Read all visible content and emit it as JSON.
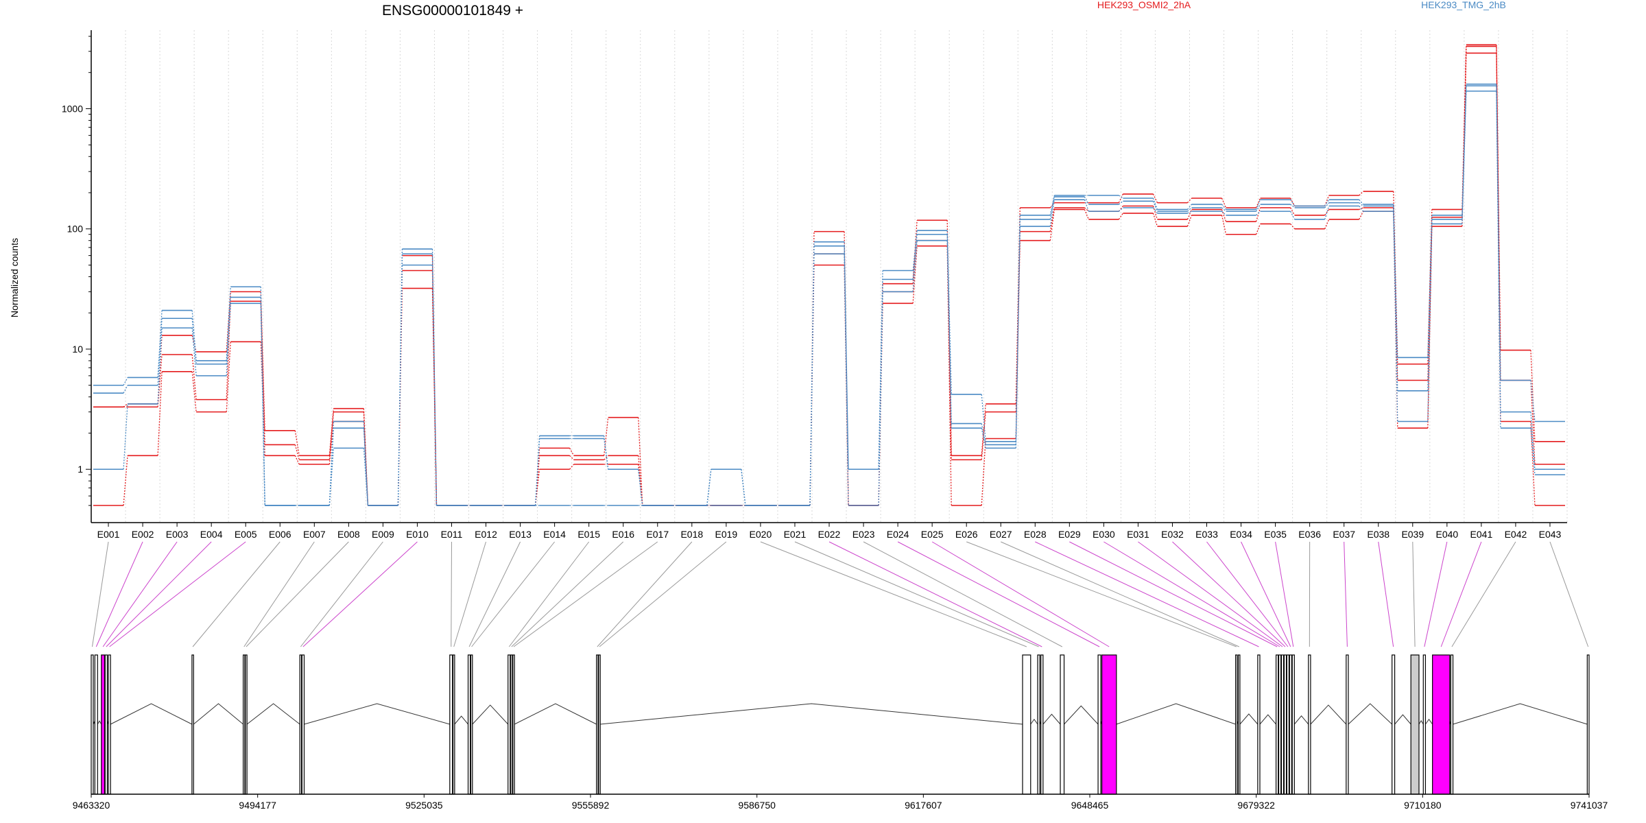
{
  "chart_data": {
    "type": "line",
    "title": "ENSG00000101849 +",
    "ylabel": "Normalized counts",
    "y_scale": "log",
    "ylim": [
      0.5,
      4500
    ],
    "y_ticks": [
      1,
      10,
      100,
      1000
    ],
    "y_tick_labels": [
      "1",
      "10",
      "100",
      "1000"
    ],
    "grid": "vertical dotted lines per exon",
    "legend": [
      {
        "name": "HEK293_OSMI2_2hA",
        "color": "#e41a1c"
      },
      {
        "name": "HEK293_TMG_2hB",
        "color": "#4a8ac4"
      }
    ],
    "categories": [
      "E001",
      "E002",
      "E003",
      "E004",
      "E005",
      "E006",
      "E007",
      "E008",
      "E009",
      "E010",
      "E011",
      "E012",
      "E013",
      "E014",
      "E015",
      "E016",
      "E017",
      "E018",
      "E019",
      "E020",
      "E021",
      "E022",
      "E023",
      "E024",
      "E025",
      "E026",
      "E027",
      "E028",
      "E029",
      "E030",
      "E031",
      "E032",
      "E033",
      "E034",
      "E035",
      "E036",
      "E037",
      "E038",
      "E039",
      "E040",
      "E041",
      "E042",
      "E043"
    ],
    "series": [
      {
        "group": "HEK293_OSMI2_2hA",
        "color": "#e41a1c",
        "values": [
          0.5,
          1.3,
          6.5,
          3.0,
          11.5,
          1.3,
          1.1,
          2.5,
          0.5,
          32,
          0.5,
          0.5,
          0.5,
          1.0,
          1.1,
          1.1,
          0.5,
          0.5,
          0.5,
          0.5,
          0.5,
          50,
          0.5,
          24,
          72,
          0.5,
          1.8,
          80,
          145,
          120,
          135,
          105,
          130,
          90,
          110,
          100,
          120,
          140,
          2.2,
          105,
          2900,
          2.5,
          0.5
        ]
      },
      {
        "group": "HEK293_OSMI2_2hA",
        "color": "#e41a1c",
        "values": [
          3.3,
          3.3,
          9.0,
          3.8,
          25,
          1.6,
          1.2,
          3.0,
          0.5,
          45,
          0.5,
          0.5,
          0.5,
          1.3,
          1.2,
          1.3,
          0.5,
          0.5,
          0.5,
          0.5,
          0.5,
          62,
          0.5,
          30,
          80,
          1.2,
          3.0,
          95,
          150,
          140,
          155,
          120,
          145,
          115,
          150,
          130,
          145,
          150,
          5.5,
          125,
          3300,
          5.5,
          1.1
        ]
      },
      {
        "group": "HEK293_OSMI2_2hA",
        "color": "#e41a1c",
        "values": [
          3.3,
          3.5,
          13,
          9.5,
          30,
          2.1,
          1.3,
          3.2,
          0.5,
          60,
          0.5,
          0.5,
          0.5,
          1.5,
          1.3,
          2.7,
          0.5,
          0.5,
          0.5,
          0.5,
          0.5,
          95,
          0.5,
          35,
          118,
          1.3,
          3.5,
          150,
          165,
          165,
          195,
          165,
          180,
          150,
          180,
          155,
          190,
          205,
          7.5,
          145,
          3400,
          9.8,
          1.7
        ]
      },
      {
        "group": "HEK293_TMG_2hB",
        "color": "#4a8ac4",
        "values": [
          1.0,
          3.5,
          15,
          6.0,
          24,
          0.5,
          0.5,
          1.5,
          0.5,
          50,
          0.5,
          0.5,
          0.5,
          0.5,
          0.5,
          0.5,
          0.5,
          0.5,
          0.5,
          0.5,
          0.5,
          62,
          0.5,
          30,
          80,
          2.2,
          1.5,
          105,
          175,
          140,
          150,
          135,
          140,
          130,
          140,
          120,
          155,
          140,
          2.5,
          110,
          1400,
          2.2,
          0.9
        ]
      },
      {
        "group": "HEK293_TMG_2hB",
        "color": "#4a8ac4",
        "values": [
          4.3,
          5.0,
          18,
          7.5,
          27,
          0.5,
          0.5,
          2.2,
          0.5,
          62,
          0.5,
          0.5,
          0.5,
          1.8,
          1.8,
          1.0,
          0.5,
          0.5,
          1.0,
          0.5,
          0.5,
          72,
          1.0,
          38,
          90,
          2.4,
          1.6,
          120,
          185,
          160,
          170,
          140,
          150,
          140,
          160,
          150,
          165,
          155,
          4.5,
          120,
          1550,
          3.0,
          1.0
        ]
      },
      {
        "group": "HEK293_TMG_2hB",
        "color": "#4a8ac4",
        "values": [
          5.0,
          5.8,
          21,
          8.0,
          33,
          0.5,
          0.5,
          2.5,
          0.5,
          68,
          0.5,
          0.5,
          0.5,
          1.9,
          1.9,
          1.0,
          0.5,
          0.5,
          1.0,
          0.5,
          0.5,
          78,
          1.0,
          45,
          97,
          4.2,
          1.7,
          130,
          190,
          190,
          180,
          145,
          160,
          145,
          175,
          155,
          175,
          160,
          8.5,
          130,
          1600,
          5.5,
          2.5
        ]
      }
    ],
    "gene_model": {
      "x_axis_labels": [
        "9463320",
        "9494177",
        "9525035",
        "9555892",
        "9586750",
        "9617607",
        "9648465",
        "9679322",
        "9710180",
        "9741037"
      ],
      "x_range": [
        9463320,
        9741037
      ],
      "feature_colors": {
        "tested": "#ffffff",
        "significant": "#ff00ff",
        "other": "#cccccc",
        "connector_normal": "#999999",
        "connector_significant": "#cc44cc"
      },
      "exons": [
        {
          "id": "E001",
          "start": 9463320,
          "end": 9463700,
          "type": "tested",
          "sig": false
        },
        {
          "id": "E002",
          "start": 9464000,
          "end": 9464500,
          "type": "tested",
          "sig": true
        },
        {
          "id": "E003",
          "start": 9465200,
          "end": 9465800,
          "type": "significant",
          "sig": true
        },
        {
          "id": "E004",
          "start": 9465900,
          "end": 9466300,
          "type": "tested",
          "sig": true
        },
        {
          "id": "E005",
          "start": 9466500,
          "end": 9466900,
          "type": "tested",
          "sig": true
        },
        {
          "id": "E006",
          "start": 9482000,
          "end": 9482300,
          "type": "tested",
          "sig": false
        },
        {
          "id": "E007",
          "start": 9491500,
          "end": 9491800,
          "type": "tested",
          "sig": false
        },
        {
          "id": "E008",
          "start": 9491900,
          "end": 9492200,
          "type": "tested",
          "sig": false
        },
        {
          "id": "E009",
          "start": 9502000,
          "end": 9502300,
          "type": "tested",
          "sig": false
        },
        {
          "id": "E010",
          "start": 9502400,
          "end": 9502800,
          "type": "tested",
          "sig": true
        },
        {
          "id": "E011",
          "start": 9529800,
          "end": 9530300,
          "type": "tested",
          "sig": false
        },
        {
          "id": "E012",
          "start": 9530400,
          "end": 9530700,
          "type": "tested",
          "sig": false
        },
        {
          "id": "E013",
          "start": 9533200,
          "end": 9533600,
          "type": "tested",
          "sig": false
        },
        {
          "id": "E014",
          "start": 9533700,
          "end": 9534000,
          "type": "tested",
          "sig": false
        },
        {
          "id": "E015",
          "start": 9540600,
          "end": 9541000,
          "type": "tested",
          "sig": false
        },
        {
          "id": "E016",
          "start": 9541100,
          "end": 9541400,
          "type": "tested",
          "sig": false
        },
        {
          "id": "E017",
          "start": 9541500,
          "end": 9541800,
          "type": "tested",
          "sig": false
        },
        {
          "id": "E018",
          "start": 9557000,
          "end": 9557300,
          "type": "tested",
          "sig": false
        },
        {
          "id": "E019",
          "start": 9557400,
          "end": 9557700,
          "type": "tested",
          "sig": false
        },
        {
          "id": "E020",
          "start": 9636000,
          "end": 9637500,
          "type": "tested",
          "sig": false
        },
        {
          "id": "E021",
          "start": 9638800,
          "end": 9639200,
          "type": "tested",
          "sig": false
        },
        {
          "id": "E022",
          "start": 9639400,
          "end": 9639800,
          "type": "tested",
          "sig": true
        },
        {
          "id": "E023",
          "start": 9643000,
          "end": 9643700,
          "type": "tested",
          "sig": false
        },
        {
          "id": "E024",
          "start": 9650000,
          "end": 9650500,
          "type": "tested",
          "sig": true
        },
        {
          "id": "E025",
          "start": 9650700,
          "end": 9653400,
          "type": "significant",
          "sig": true
        },
        {
          "id": "E026",
          "start": 9675500,
          "end": 9675800,
          "type": "tested",
          "sig": false
        },
        {
          "id": "E027",
          "start": 9676000,
          "end": 9676300,
          "type": "tested",
          "sig": false
        },
        {
          "id": "E028",
          "start": 9679600,
          "end": 9680000,
          "type": "tested",
          "sig": true
        },
        {
          "id": "E029",
          "start": 9683000,
          "end": 9683400,
          "type": "tested",
          "sig": true
        },
        {
          "id": "E030",
          "start": 9683500,
          "end": 9683900,
          "type": "tested",
          "sig": true
        },
        {
          "id": "E031",
          "start": 9684000,
          "end": 9684400,
          "type": "tested",
          "sig": true
        },
        {
          "id": "E032",
          "start": 9684500,
          "end": 9684900,
          "type": "tested",
          "sig": true
        },
        {
          "id": "E033",
          "start": 9685000,
          "end": 9685400,
          "type": "tested",
          "sig": true
        },
        {
          "id": "E034",
          "start": 9685500,
          "end": 9685900,
          "type": "tested",
          "sig": true
        },
        {
          "id": "E035",
          "start": 9686000,
          "end": 9686400,
          "type": "tested",
          "sig": true
        },
        {
          "id": "E036",
          "start": 9689000,
          "end": 9689400,
          "type": "tested",
          "sig": false
        },
        {
          "id": "E037",
          "start": 9696000,
          "end": 9696400,
          "type": "tested",
          "sig": true
        },
        {
          "id": "E038",
          "start": 9704500,
          "end": 9705000,
          "type": "tested",
          "sig": true
        },
        {
          "id": "E039",
          "start": 9708000,
          "end": 9709500,
          "type": "other",
          "sig": false
        },
        {
          "id": "E040",
          "start": 9710300,
          "end": 9710700,
          "type": "tested",
          "sig": true
        },
        {
          "id": "E041",
          "start": 9712000,
          "end": 9715200,
          "type": "significant",
          "sig": true
        },
        {
          "id": "E042",
          "start": 9715400,
          "end": 9715800,
          "type": "tested",
          "sig": false
        },
        {
          "id": "E043",
          "start": 9740700,
          "end": 9741037,
          "type": "tested",
          "sig": false
        }
      ]
    }
  }
}
